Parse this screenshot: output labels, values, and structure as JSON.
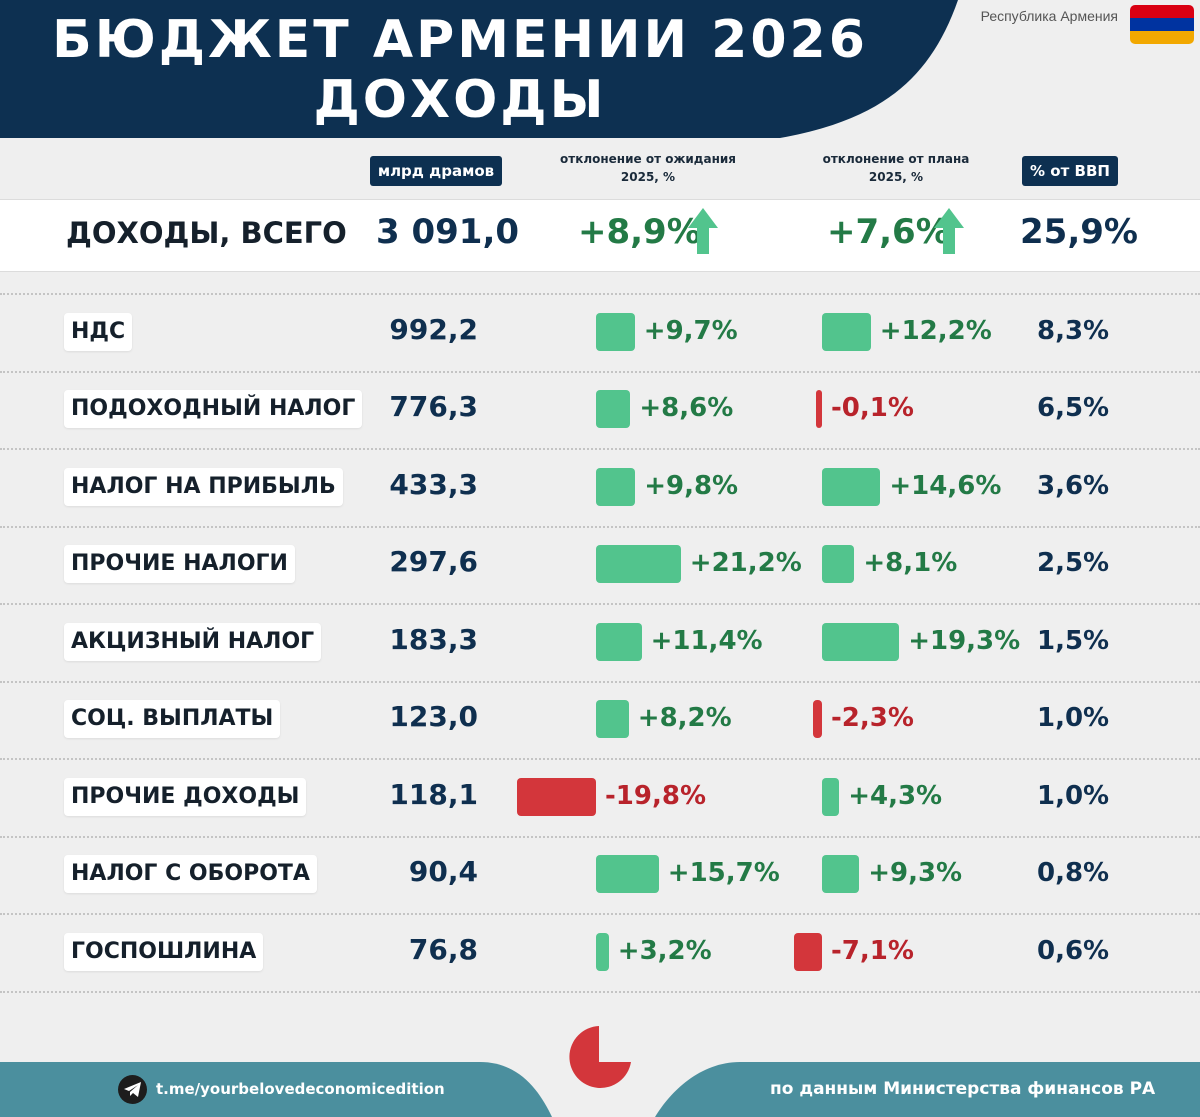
{
  "header": {
    "title_line1": "БЮДЖЕТ АРМЕНИИ 2026",
    "title_line2": "ДОХОДЫ",
    "country": "Республика Армения",
    "flag_colors": [
      "#d90012",
      "#0033a0",
      "#f2a800"
    ]
  },
  "columns": {
    "value": "млрд драмов",
    "dev_expect_line1": "отклонение от ожидания",
    "dev_expect_line2": "2025, %",
    "dev_plan_line1": "отклонение от плана",
    "dev_plan_line2": "2025, %",
    "gdp": "% от ВВП"
  },
  "total": {
    "label": "ДОХОДЫ, ВСЕГО",
    "value": "3 091,0",
    "dev_expect": "+8,9%",
    "dev_plan": "+7,6%",
    "gdp": "25,9%"
  },
  "colors": {
    "positive_bar": "#52c48d",
    "negative_bar": "#d3363b",
    "positive_text": "#237a46",
    "negative_text": "#b8232b",
    "navy": "#0d3051",
    "footer": "#4b8f9e"
  },
  "chart_data": {
    "type": "table",
    "title": "БЮДЖЕТ АРМЕНИИ 2026 ДОХОДЫ",
    "columns": [
      "млрд драмов",
      "отклонение от ожидания 2025, %",
      "отклонение от плана 2025, %",
      "% от ВВП"
    ],
    "rows": [
      {
        "label": "НДС",
        "value": 992.2,
        "value_text": "992,2",
        "dev_expect": 9.7,
        "dev_expect_text": "+9,7%",
        "dev_plan": 12.2,
        "dev_plan_text": "+12,2%",
        "gdp_text": "8,3%"
      },
      {
        "label": "ПОДОХОДНЫЙ НАЛОГ",
        "value": 776.3,
        "value_text": "776,3",
        "dev_expect": 8.6,
        "dev_expect_text": "+8,6%",
        "dev_plan": -0.1,
        "dev_plan_text": "-0,1%",
        "gdp_text": "6,5%"
      },
      {
        "label": "НАЛОГ НА ПРИБЫЛЬ",
        "value": 433.3,
        "value_text": "433,3",
        "dev_expect": 9.8,
        "dev_expect_text": "+9,8%",
        "dev_plan": 14.6,
        "dev_plan_text": "+14,6%",
        "gdp_text": "3,6%"
      },
      {
        "label": "ПРОЧИЕ НАЛОГИ",
        "value": 297.6,
        "value_text": "297,6",
        "dev_expect": 21.2,
        "dev_expect_text": "+21,2%",
        "dev_plan": 8.1,
        "dev_plan_text": "+8,1%",
        "gdp_text": "2,5%"
      },
      {
        "label": "АКЦИЗНЫЙ НАЛОГ",
        "value": 183.3,
        "value_text": "183,3",
        "dev_expect": 11.4,
        "dev_expect_text": "+11,4%",
        "dev_plan": 19.3,
        "dev_plan_text": "+19,3%",
        "gdp_text": "1,5%"
      },
      {
        "label": "СОЦ. ВЫПЛАТЫ",
        "value": 123.0,
        "value_text": "123,0",
        "dev_expect": 8.2,
        "dev_expect_text": "+8,2%",
        "dev_plan": -2.3,
        "dev_plan_text": "-2,3%",
        "gdp_text": "1,0%"
      },
      {
        "label": "ПРОЧИЕ ДОХОДЫ",
        "value": 118.1,
        "value_text": "118,1",
        "dev_expect": -19.8,
        "dev_expect_text": "-19,8%",
        "dev_plan": 4.3,
        "dev_plan_text": "+4,3%",
        "gdp_text": "1,0%"
      },
      {
        "label": "НАЛОГ С ОБОРОТА",
        "value": 90.4,
        "value_text": "90,4",
        "dev_expect": 15.7,
        "dev_expect_text": "+15,7%",
        "dev_plan": 9.3,
        "dev_plan_text": "+9,3%",
        "gdp_text": "0,8%"
      },
      {
        "label": "ГОСПОШЛИНА",
        "value": 76.8,
        "value_text": "76,8",
        "dev_expect": 3.2,
        "dev_expect_text": "+3,2%",
        "dev_plan": -7.1,
        "dev_plan_text": "-7,1%",
        "gdp_text": "0,6%"
      }
    ]
  },
  "footer": {
    "telegram": "t.me/yourbelovedeconomicedition",
    "source": "по данным Министерства финансов РА",
    "telegram_icon": "telegram-icon",
    "logo_icon": "pie-logo-icon"
  }
}
